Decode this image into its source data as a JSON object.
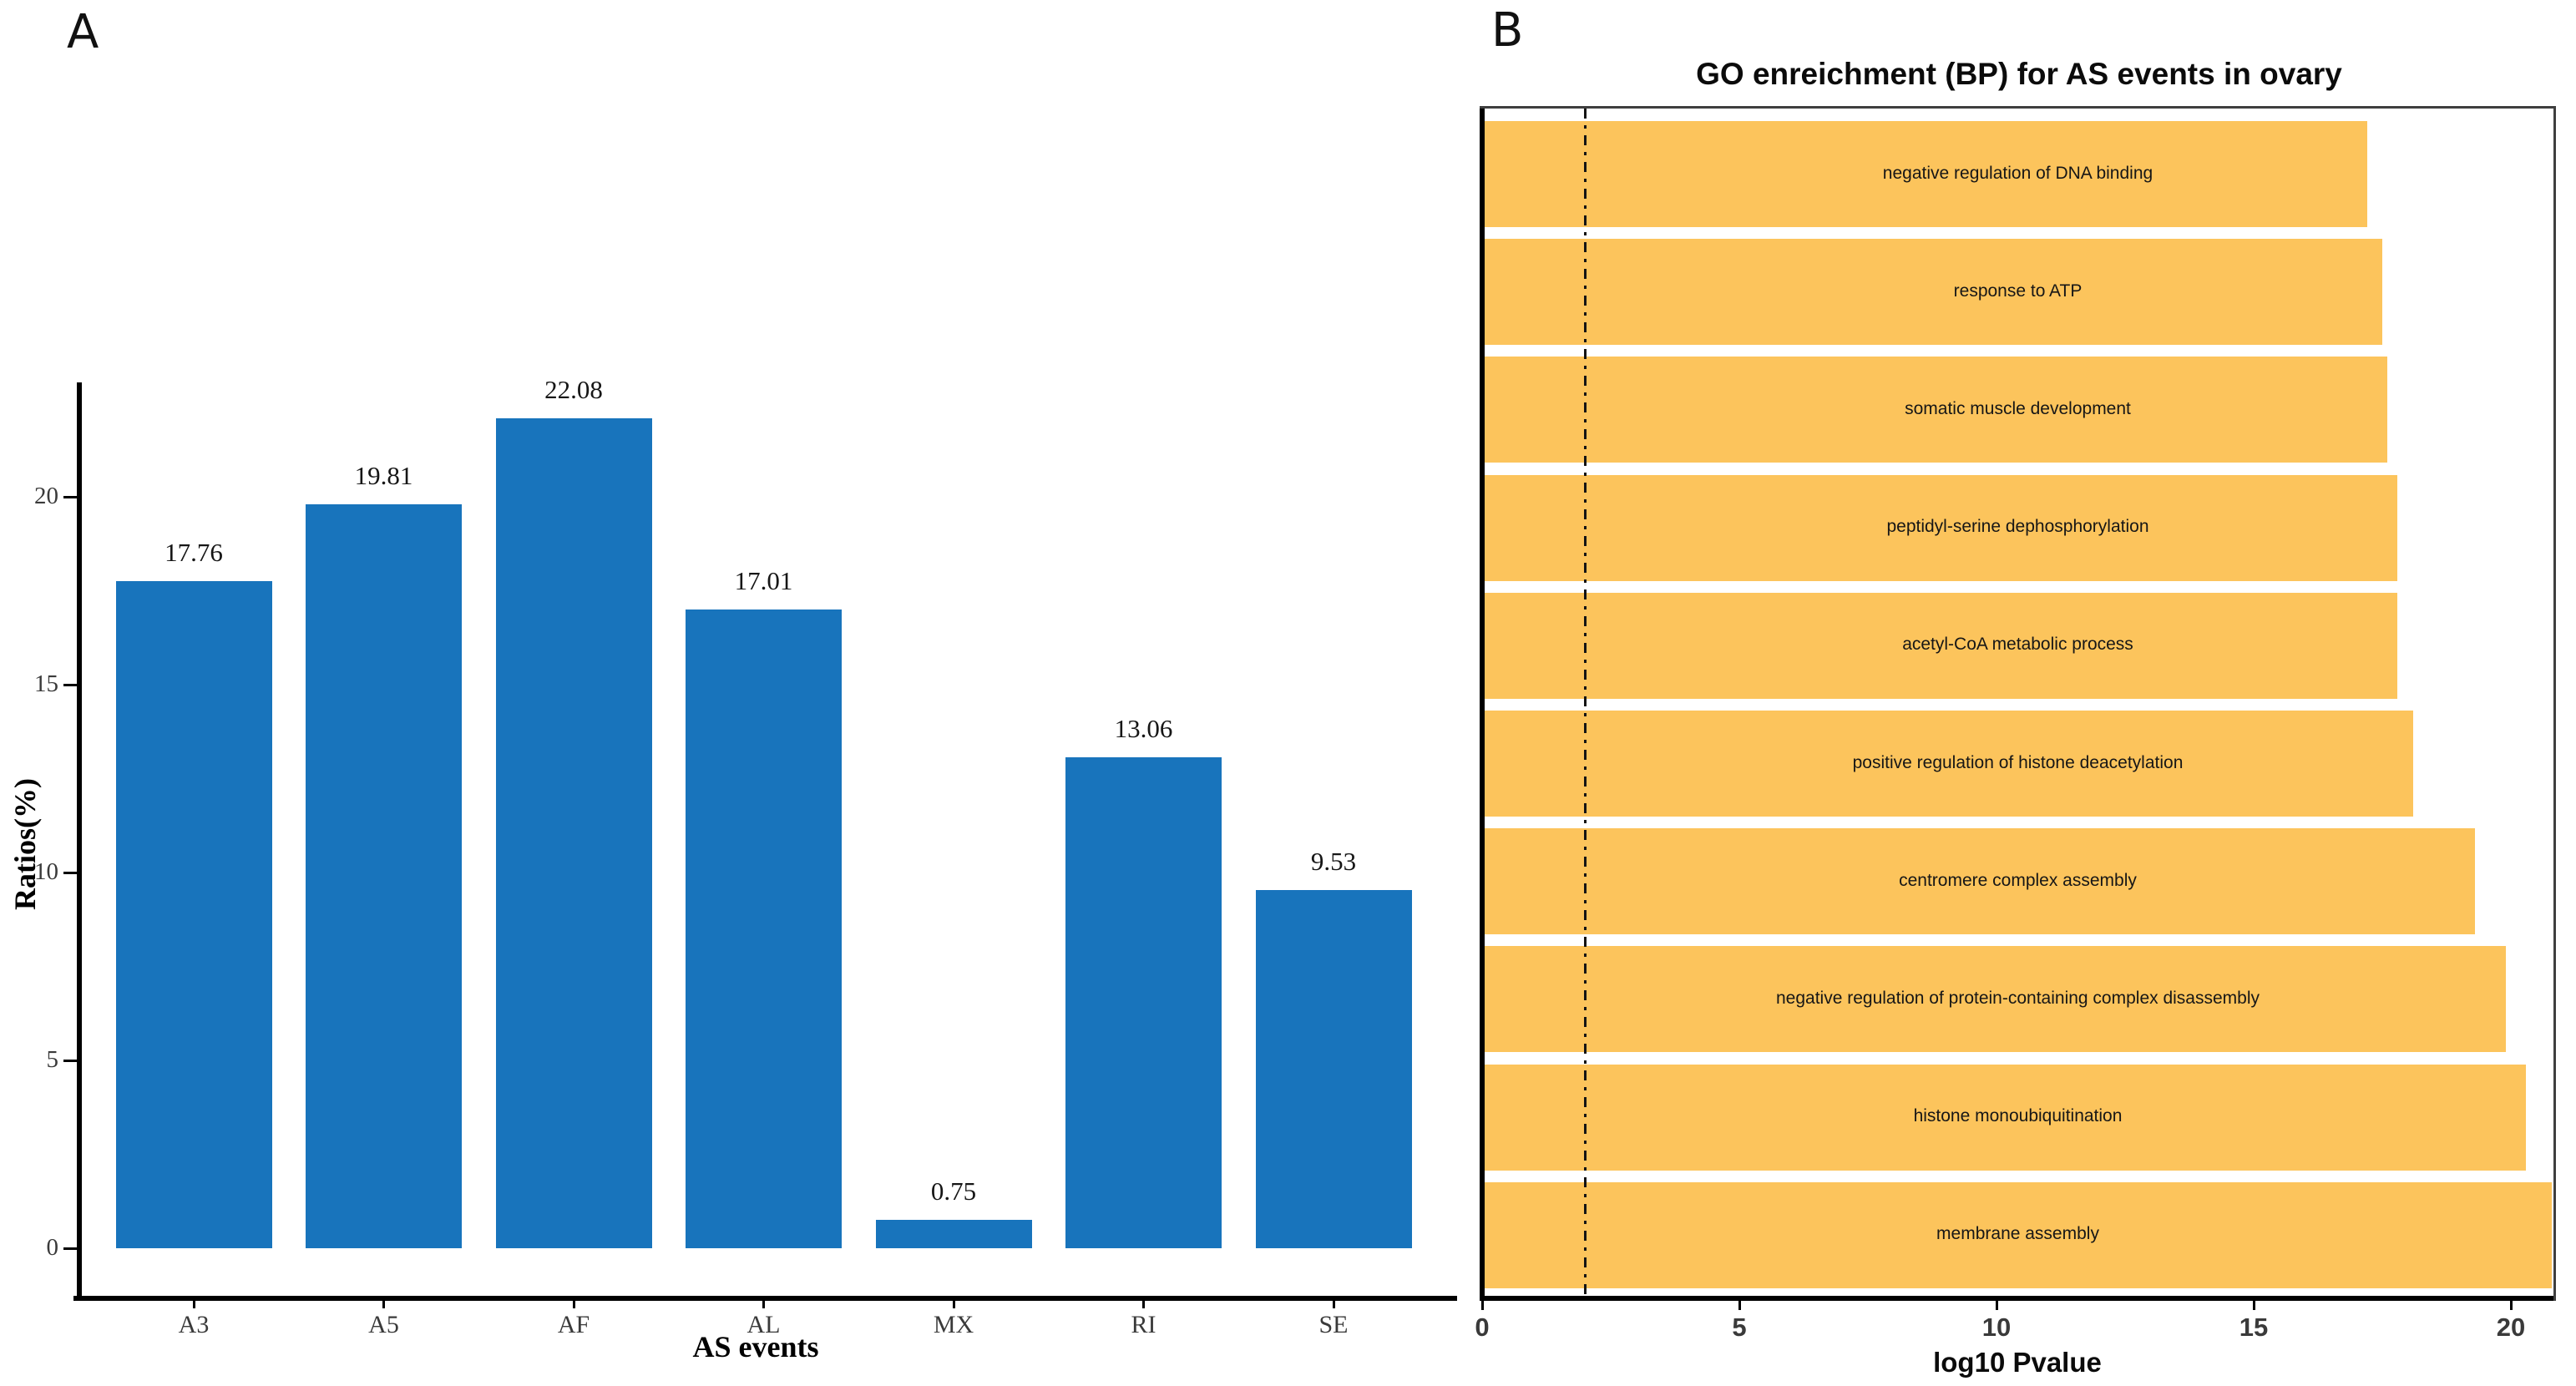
{
  "chart_data": [
    {
      "panel_label": "A",
      "type": "bar",
      "categories": [
        "A3",
        "A5",
        "AF",
        "AL",
        "MX",
        "RI",
        "SE"
      ],
      "values": [
        17.76,
        19.81,
        22.08,
        17.01,
        0.75,
        13.06,
        9.53
      ],
      "data_labels": [
        "17.76",
        "19.81",
        "22.08",
        "17.01",
        "0.75",
        "13.06",
        "9.53"
      ],
      "xlabel": "AS events",
      "ylabel": "Ratios(%)",
      "yticks": [
        "0",
        "5",
        "10",
        "15",
        "20"
      ],
      "ytick_values": [
        0,
        5,
        10,
        15,
        20
      ],
      "ylim": [
        0,
        23.3
      ],
      "grid": false,
      "legend": "none",
      "bar_color": "#1874BC",
      "axis_color": "#000000"
    },
    {
      "panel_label": "B",
      "type": "bar-horizontal",
      "title": "GO enreichment (BP) for AS events in ovary",
      "categories": [
        "negative regulation of DNA binding",
        "response to ATP",
        "somatic muscle development",
        "peptidyl-serine dephosphorylation",
        "acetyl-CoA metabolic process",
        "positive regulation of histone deacetylation",
        "centromere complex assembly",
        "negative regulation of protein-containing complex disassembly",
        "histone monoubiquitination",
        "membrane assembly"
      ],
      "values": [
        17.2,
        17.5,
        17.6,
        17.8,
        17.8,
        18.1,
        19.3,
        19.9,
        20.3,
        20.8
      ],
      "xlabel": "log10 Pvalue",
      "xticks": [
        "0",
        "5",
        "10",
        "15",
        "20"
      ],
      "xtick_values": [
        0,
        5,
        10,
        15,
        20
      ],
      "xlim": [
        0,
        20.85
      ],
      "threshold_line": {
        "x": 2,
        "style": "dash-dot",
        "color": "#141414"
      },
      "grid": false,
      "legend": "none",
      "bar_color": "#FCC45C",
      "label_color": "#161616",
      "border_color": "#000000"
    }
  ]
}
